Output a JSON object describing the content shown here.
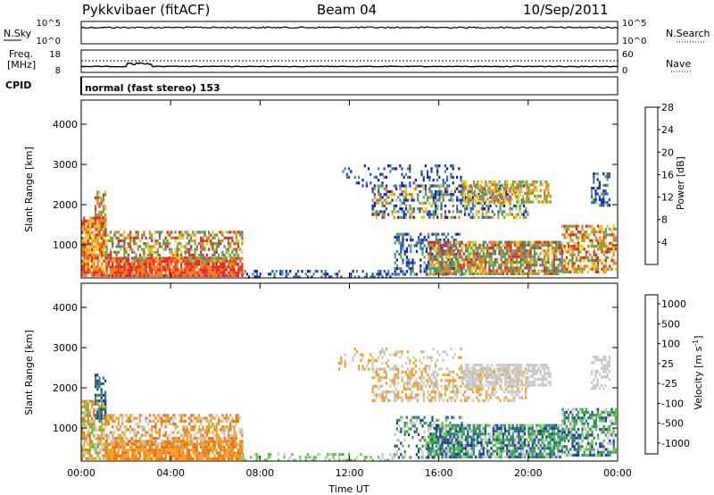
{
  "header": {
    "station": "Pykkvibaer (fitACF)",
    "beam": "Beam 04",
    "date": "10/Sep/2011"
  },
  "noise_panel": {
    "left_label": "N.Sky",
    "right_label": "N.Search",
    "left_ticks": [
      "10^5",
      "10^0"
    ],
    "right_ticks": [
      "10^5",
      "10^0"
    ]
  },
  "freq_panel": {
    "left_label_line1": "Freq.",
    "left_label_line2": "[MHz]",
    "right_label": "Nave",
    "left_ticks": [
      "18",
      "8"
    ],
    "right_ticks": [
      "60",
      "0"
    ]
  },
  "cpid": {
    "label": "CPID",
    "mode_text": "normal (fast stereo) 153"
  },
  "chart_data": [
    {
      "type": "heatmap",
      "name": "power",
      "xlabel": "",
      "ylabel": "Slant Range [km]",
      "x_ticks": [
        "00:00",
        "04:00",
        "08:00",
        "12:00",
        "16:00",
        "20:00",
        "00:00"
      ],
      "x_range_hours": [
        0,
        24
      ],
      "y_ticks": [
        "1000",
        "2000",
        "3000",
        "4000"
      ],
      "y_range_km": [
        180,
        4600
      ],
      "colorbar_label": "Power [dB]",
      "colorbar_ticks": [
        "4",
        "8",
        "12",
        "16",
        "20",
        "24",
        "28"
      ],
      "colorbar_colors": [
        "#0c14e6",
        "#244fb8",
        "#3f8a8a",
        "#5aaa48",
        "#e6c81e",
        "#f07a18",
        "#e8241a"
      ]
    },
    {
      "type": "heatmap",
      "name": "velocity",
      "xlabel": "Time UT",
      "ylabel": "Slant Range [km]",
      "x_ticks": [
        "00:00",
        "04:00",
        "08:00",
        "12:00",
        "16:00",
        "20:00",
        "00:00"
      ],
      "x_range_hours": [
        0,
        24
      ],
      "y_ticks": [
        "1000",
        "2000",
        "3000",
        "4000"
      ],
      "y_range_km": [
        180,
        4600
      ],
      "colorbar_label": "Velocity [m s-1]",
      "colorbar_label_main": "Velocity [m s",
      "colorbar_label_exp": "-1",
      "colorbar_label_end": "]",
      "colorbar_ticks": [
        "1000",
        "500",
        "100",
        "25",
        "-25",
        "-100",
        "-500",
        "-1000"
      ],
      "colorbar_colors": [
        "#1a3ca8",
        "#2a7a7a",
        "#3c9a4a",
        "#5ac83c",
        "#c8c8c8",
        "#f0a020",
        "#f07010",
        "#e81a10"
      ]
    }
  ]
}
